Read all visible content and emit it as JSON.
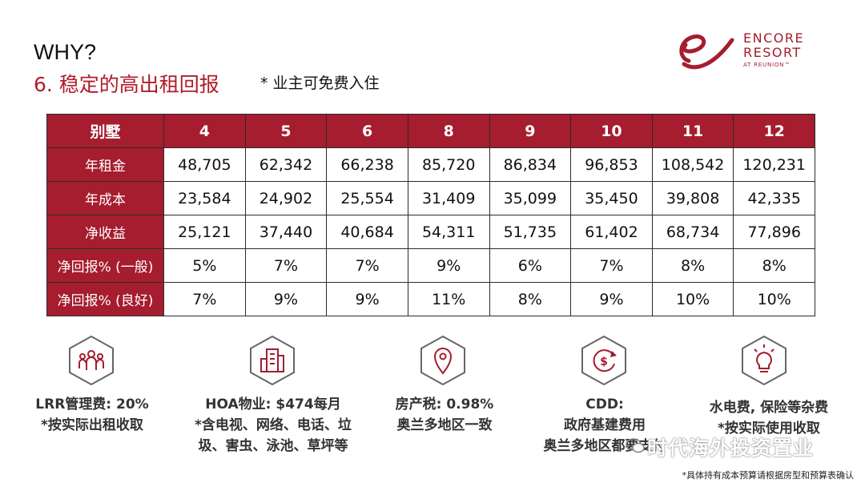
{
  "header": {
    "why": "WHY?",
    "subtitle": "6. 稳定的高出租回报",
    "note": "* 业主可免费入住"
  },
  "logo": {
    "line1": "ENCORE",
    "line2": "RESORT",
    "line3": "AT REUNION™",
    "color": "#a51d2e"
  },
  "table": {
    "header_label": "别墅",
    "columns": [
      "4",
      "5",
      "6",
      "8",
      "9",
      "10",
      "11",
      "12"
    ],
    "rows": [
      {
        "label": "年租金",
        "values": [
          "48,705",
          "62,342",
          "66,238",
          "85,720",
          "86,834",
          "96,853",
          "108,542",
          "120,231"
        ]
      },
      {
        "label": "年成本",
        "values": [
          "23,584",
          "24,902",
          "25,554",
          "31,409",
          "35,099",
          "35,450",
          "39,808",
          "42,335"
        ]
      },
      {
        "label": "净收益",
        "values": [
          "25,121",
          "37,440",
          "40,684",
          "54,311",
          "51,735",
          "61,402",
          "68,734",
          "77,896"
        ]
      },
      {
        "label": "净回报% (一般)",
        "values": [
          "5%",
          "7%",
          "7%",
          "9%",
          "6%",
          "7%",
          "8%",
          "8%"
        ]
      },
      {
        "label": "净回报% (良好)",
        "values": [
          "7%",
          "9%",
          "9%",
          "11%",
          "8%",
          "9%",
          "10%",
          "10%"
        ]
      }
    ],
    "accent_color": "#a51d2e"
  },
  "features": [
    {
      "icon": "people-icon",
      "line1": "LRR管理费: 20%",
      "line2": "*按实际出租收取"
    },
    {
      "icon": "building-icon",
      "line1": "HOA物业: $474每月",
      "line2": "*含电视、网络、电话、垃",
      "line3": "圾、害虫、泳池、草坪等"
    },
    {
      "icon": "location-pin-icon",
      "line1": "房产税: 0.98%",
      "line2": "奥兰多地区一致"
    },
    {
      "icon": "dollar-cycle-icon",
      "line1": "CDD:",
      "line2": "政府基建费用",
      "line3": "奥兰多地区都要支付"
    },
    {
      "icon": "lightbulb-icon",
      "line1": "水电费, 保险等杂费",
      "line2": "*按实际使用收取"
    }
  ],
  "watermark": "时代海外投资置业",
  "footer": "*具体持有成本预算请根据房型和预算表确认"
}
